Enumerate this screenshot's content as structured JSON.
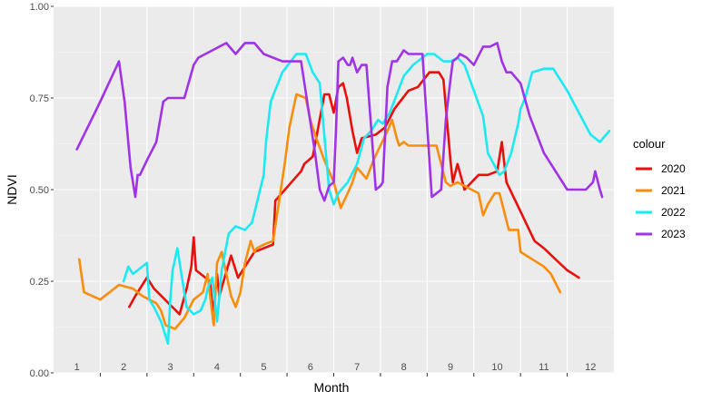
{
  "chart_data": {
    "type": "line",
    "xlabel": "Month",
    "ylabel": "NDVI",
    "xlim": [
      1,
      12.5
    ],
    "ylim": [
      0,
      1
    ],
    "x_ticks": [
      1,
      2,
      3,
      4,
      5,
      6,
      7,
      8,
      9,
      10,
      11,
      12
    ],
    "x_tick_labels": [
      "1",
      "2",
      "3",
      "4",
      "5",
      "6",
      "7",
      "8",
      "9",
      "10",
      "11",
      "12"
    ],
    "y_ticks": [
      0,
      0.25,
      0.5,
      0.75,
      1
    ],
    "y_tick_labels": [
      "0.00",
      "0.25",
      "0.50",
      "0.75",
      "1.00"
    ],
    "grid": true,
    "legend": {
      "title": "colour",
      "position": "right"
    },
    "series": [
      {
        "name": "2020",
        "color": "#e8100c",
        "x": [
          2.12,
          2.25,
          2.5,
          2.65,
          3.2,
          3.35,
          3.45,
          3.5,
          3.55,
          3.75,
          3.85,
          3.92,
          4.0,
          4.05,
          4.3,
          4.45,
          4.6,
          4.8,
          5.2,
          5.25,
          5.8,
          5.87,
          6.05,
          6.3,
          6.4,
          6.5,
          6.6,
          6.7,
          6.78,
          6.9,
          7.0,
          7.1,
          7.4,
          7.6,
          7.8,
          8.1,
          8.3,
          8.55,
          8.75,
          8.85,
          9.0,
          9.05,
          9.15,
          9.3,
          9.6,
          9.8,
          10.0,
          10.1,
          10.2,
          10.5,
          10.8,
          11.0,
          11.25,
          11.5,
          11.75
        ],
        "values": [
          0.18,
          0.21,
          0.26,
          0.23,
          0.16,
          0.23,
          0.29,
          0.37,
          0.28,
          0.26,
          0.25,
          0.16,
          0.27,
          0.21,
          0.32,
          0.26,
          0.29,
          0.33,
          0.35,
          0.47,
          0.55,
          0.57,
          0.59,
          0.76,
          0.76,
          0.71,
          0.78,
          0.79,
          0.75,
          0.66,
          0.6,
          0.64,
          0.65,
          0.67,
          0.72,
          0.77,
          0.78,
          0.82,
          0.82,
          0.8,
          0.58,
          0.52,
          0.57,
          0.5,
          0.54,
          0.54,
          0.55,
          0.63,
          0.52,
          0.44,
          0.36,
          0.34,
          0.31,
          0.28,
          0.26
        ]
      },
      {
        "name": "2021",
        "color": "#f78e0d",
        "x": [
          1.05,
          1.15,
          1.5,
          1.9,
          2.2,
          2.4,
          2.55,
          2.7,
          2.8,
          2.9,
          3.1,
          3.3,
          3.5,
          3.7,
          3.8,
          3.88,
          3.93,
          4.0,
          4.1,
          4.25,
          4.3,
          4.4,
          4.5,
          4.6,
          4.72,
          4.8,
          4.85,
          5.0,
          5.2,
          5.45,
          5.55,
          5.7,
          5.9,
          6.0,
          6.1,
          6.3,
          6.5,
          6.65,
          6.8,
          6.9,
          7.0,
          7.2,
          7.35,
          7.5,
          7.65,
          7.75,
          7.85,
          7.9,
          8.0,
          8.1,
          8.3,
          8.55,
          8.7,
          8.9,
          9.0,
          9.15,
          9.3,
          9.45,
          9.6,
          9.7,
          9.8,
          9.95,
          10.05,
          10.25,
          10.45,
          10.5,
          11.0,
          11.15,
          11.35
        ],
        "values": [
          0.31,
          0.22,
          0.2,
          0.24,
          0.23,
          0.21,
          0.2,
          0.19,
          0.17,
          0.13,
          0.12,
          0.15,
          0.2,
          0.22,
          0.27,
          0.18,
          0.13,
          0.3,
          0.33,
          0.24,
          0.21,
          0.18,
          0.22,
          0.3,
          0.36,
          0.33,
          0.34,
          0.35,
          0.36,
          0.57,
          0.67,
          0.76,
          0.75,
          0.69,
          0.65,
          0.58,
          0.52,
          0.45,
          0.49,
          0.52,
          0.56,
          0.53,
          0.58,
          0.62,
          0.66,
          0.69,
          0.64,
          0.62,
          0.63,
          0.62,
          0.62,
          0.62,
          0.62,
          0.52,
          0.51,
          0.52,
          0.51,
          0.5,
          0.49,
          0.43,
          0.46,
          0.49,
          0.49,
          0.39,
          0.39,
          0.33,
          0.29,
          0.27,
          0.22
        ]
      },
      {
        "name": "2022",
        "color": "#1de9f1",
        "x": [
          2.0,
          2.1,
          2.2,
          2.3,
          2.5,
          2.55,
          2.65,
          2.8,
          2.95,
          3.0,
          3.05,
          3.15,
          3.25,
          3.35,
          3.5,
          3.65,
          3.75,
          3.8,
          3.9,
          4.0,
          4.1,
          4.25,
          4.4,
          4.6,
          4.75,
          5.0,
          5.05,
          5.15,
          5.4,
          5.7,
          5.9,
          6.05,
          6.2,
          6.4,
          6.5,
          6.6,
          6.8,
          7.0,
          7.15,
          7.3,
          7.45,
          7.55,
          7.7,
          8.0,
          8.2,
          8.5,
          8.65,
          8.75,
          8.85,
          9.0,
          9.15,
          9.3,
          9.5,
          9.7,
          9.8,
          10.05,
          10.15,
          10.3,
          10.45,
          10.5,
          10.6,
          10.75,
          11.0,
          11.2,
          11.5,
          11.75,
          12.0,
          12.2,
          12.4
        ],
        "values": [
          0.25,
          0.29,
          0.27,
          0.28,
          0.3,
          0.2,
          0.18,
          0.14,
          0.08,
          0.2,
          0.28,
          0.34,
          0.26,
          0.18,
          0.16,
          0.17,
          0.2,
          0.23,
          0.26,
          0.14,
          0.28,
          0.38,
          0.4,
          0.39,
          0.41,
          0.54,
          0.63,
          0.74,
          0.82,
          0.87,
          0.87,
          0.82,
          0.79,
          0.5,
          0.46,
          0.49,
          0.52,
          0.57,
          0.64,
          0.66,
          0.69,
          0.68,
          0.71,
          0.81,
          0.84,
          0.87,
          0.87,
          0.86,
          0.85,
          0.85,
          0.86,
          0.84,
          0.77,
          0.7,
          0.6,
          0.54,
          0.55,
          0.6,
          0.68,
          0.72,
          0.75,
          0.82,
          0.83,
          0.83,
          0.77,
          0.71,
          0.65,
          0.63,
          0.66
        ]
      },
      {
        "name": "2023",
        "color": "#a033e6",
        "x": [
          1.0,
          1.5,
          1.9,
          2.02,
          2.15,
          2.25,
          2.3,
          2.35,
          2.5,
          2.7,
          2.85,
          2.95,
          3.1,
          3.3,
          3.5,
          3.6,
          4.2,
          4.4,
          4.6,
          4.8,
          5.0,
          5.4,
          5.8,
          6.1,
          6.2,
          6.3,
          6.4,
          6.5,
          6.55,
          6.6,
          6.7,
          6.75,
          6.8,
          6.85,
          6.9,
          7.0,
          7.1,
          7.15,
          7.2,
          7.4,
          7.5,
          7.55,
          7.65,
          7.75,
          7.85,
          8.0,
          8.1,
          8.2,
          8.3,
          8.4,
          8.6,
          8.8,
          8.9,
          9.0,
          9.05,
          9.15,
          9.2,
          9.35,
          9.5,
          9.7,
          9.85,
          10.0,
          10.1,
          10.2,
          10.3,
          10.5,
          10.7,
          11.0,
          11.5,
          11.9,
          12.05,
          12.1,
          12.2,
          12.25
        ],
        "values": [
          0.61,
          0.74,
          0.85,
          0.74,
          0.56,
          0.48,
          0.54,
          0.54,
          0.58,
          0.63,
          0.74,
          0.75,
          0.75,
          0.75,
          0.84,
          0.86,
          0.9,
          0.87,
          0.9,
          0.9,
          0.87,
          0.85,
          0.85,
          0.6,
          0.5,
          0.47,
          0.51,
          0.52,
          0.67,
          0.85,
          0.86,
          0.85,
          0.84,
          0.84,
          0.86,
          0.82,
          0.84,
          0.84,
          0.84,
          0.5,
          0.51,
          0.52,
          0.78,
          0.85,
          0.85,
          0.88,
          0.87,
          0.87,
          0.87,
          0.87,
          0.48,
          0.5,
          0.69,
          0.8,
          0.85,
          0.86,
          0.87,
          0.86,
          0.84,
          0.89,
          0.89,
          0.9,
          0.85,
          0.82,
          0.82,
          0.79,
          0.7,
          0.6,
          0.5,
          0.5,
          0.52,
          0.55,
          0.5,
          0.48
        ]
      }
    ]
  }
}
